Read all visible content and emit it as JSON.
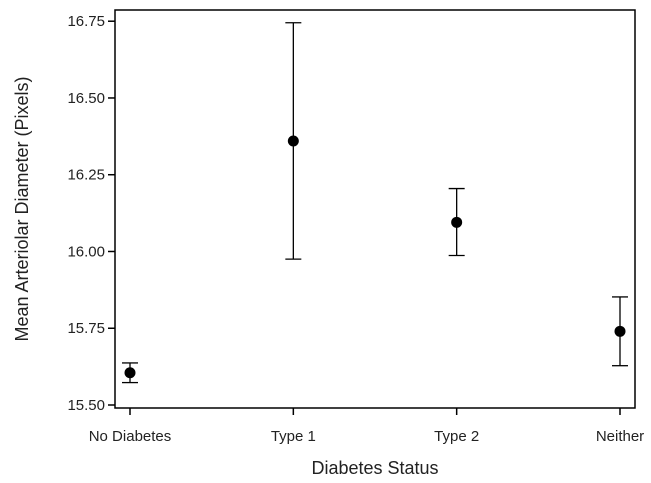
{
  "chart_data": {
    "type": "scatter",
    "title": "",
    "xlabel": "Diabetes Status",
    "ylabel": "Mean Arteriolar Diameter (Pixels)",
    "categories": [
      "No Diabetes",
      "Type 1",
      "Type 2",
      "Neither"
    ],
    "series": [
      {
        "values": [
          15.605,
          16.36,
          16.095,
          15.74
        ],
        "error_lower": [
          15.573,
          15.975,
          15.987,
          15.628
        ],
        "error_upper": [
          15.637,
          16.745,
          16.205,
          15.852
        ]
      }
    ],
    "ylim": [
      15.5,
      16.78
    ],
    "yticks": [
      "15.50",
      "15.75",
      "16.00",
      "16.25",
      "16.50",
      "16.75"
    ],
    "ytick_values": [
      15.5,
      15.75,
      16.0,
      16.25,
      16.5,
      16.75
    ],
    "grid": false,
    "colors": {
      "marker": "#000000",
      "axis": "#000000"
    }
  }
}
